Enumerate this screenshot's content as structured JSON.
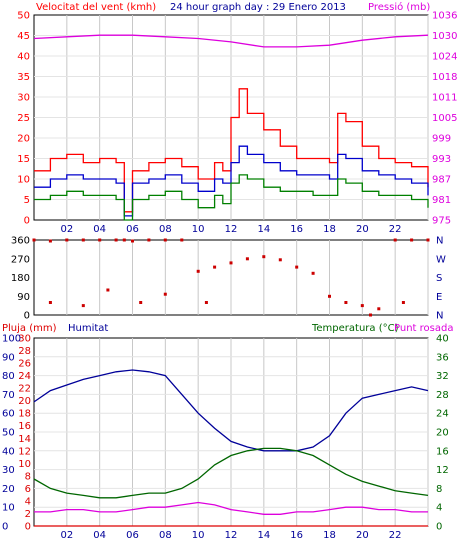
{
  "chart_data": [
    {
      "type": "line",
      "panel": "wind-pressure",
      "title": "24 hour graph day : 29 Enero 2013",
      "left_label": "Velocitat del vent (kmh)",
      "right_label": "Pressió (mb)",
      "x_ticks": [
        "02",
        "04",
        "06",
        "08",
        "10",
        "12",
        "14",
        "16",
        "18",
        "20",
        "22"
      ],
      "left_ylim": [
        0,
        50
      ],
      "left_ticks": [
        0,
        5,
        10,
        15,
        20,
        25,
        30,
        35,
        40,
        45,
        50
      ],
      "right_ylim": [
        975,
        1036
      ],
      "right_ticks": [
        975,
        981,
        987,
        993,
        999,
        1005,
        1011,
        1018,
        1024,
        1030,
        1036
      ],
      "series": [
        {
          "role": "wind-gust",
          "color": "#ff0000",
          "x": [
            0,
            1,
            2,
            3,
            4,
            5,
            5.5,
            6,
            7,
            8,
            9,
            10,
            11,
            11.5,
            12,
            12.5,
            13,
            14,
            15,
            16,
            17,
            18,
            18.5,
            19,
            20,
            21,
            22,
            23,
            24
          ],
          "values": [
            12,
            15,
            16,
            14,
            15,
            14,
            2,
            12,
            14,
            15,
            13,
            10,
            14,
            12,
            25,
            32,
            26,
            22,
            18,
            15,
            15,
            14,
            26,
            24,
            18,
            15,
            14,
            13,
            8
          ]
        },
        {
          "role": "wind-average",
          "color": "#0000cc",
          "x": [
            0,
            1,
            2,
            3,
            4,
            5,
            5.5,
            6,
            7,
            8,
            9,
            10,
            11,
            11.5,
            12,
            12.5,
            13,
            14,
            15,
            16,
            17,
            18,
            18.5,
            19,
            20,
            21,
            22,
            23,
            24
          ],
          "values": [
            8,
            10,
            11,
            10,
            10,
            9,
            1,
            9,
            10,
            11,
            9,
            7,
            10,
            9,
            14,
            18,
            16,
            14,
            12,
            11,
            11,
            10,
            16,
            15,
            12,
            11,
            10,
            9,
            6
          ]
        },
        {
          "role": "wind-minimum",
          "color": "#008000",
          "x": [
            0,
            1,
            2,
            3,
            4,
            5,
            5.5,
            6,
            7,
            8,
            9,
            10,
            11,
            11.5,
            12,
            12.5,
            13,
            14,
            15,
            16,
            17,
            18,
            18.5,
            19,
            20,
            21,
            22,
            23,
            24
          ],
          "values": [
            5,
            6,
            7,
            6,
            6,
            5,
            0,
            5,
            6,
            7,
            5,
            3,
            6,
            4,
            9,
            11,
            10,
            8,
            7,
            7,
            6,
            6,
            10,
            9,
            7,
            6,
            6,
            5,
            3
          ]
        },
        {
          "role": "pressure",
          "color": "#dd00dd",
          "axis": "right",
          "x": [
            0,
            2,
            4,
            6,
            8,
            10,
            12,
            14,
            16,
            18,
            20,
            22,
            24
          ],
          "values": [
            1029,
            1029.5,
            1030,
            1030,
            1029.5,
            1029,
            1028,
            1026.5,
            1026.5,
            1027,
            1028.5,
            1029.5,
            1030
          ]
        }
      ]
    },
    {
      "type": "scatter",
      "panel": "wind-direction",
      "x_ticks": [
        "02",
        "04",
        "06",
        "08",
        "10",
        "12",
        "14",
        "16",
        "18",
        "20",
        "22"
      ],
      "ylim": [
        0,
        360
      ],
      "left_ticks": [
        0,
        90,
        180,
        270,
        360
      ],
      "right_ticks": [
        "N",
        "E",
        "S",
        "W",
        "N"
      ],
      "color": "#cc0000",
      "points": [
        [
          0,
          360
        ],
        [
          1,
          355
        ],
        [
          2,
          360
        ],
        [
          3,
          360
        ],
        [
          4,
          360
        ],
        [
          5,
          360
        ],
        [
          5.5,
          360
        ],
        [
          6,
          355
        ],
        [
          7,
          360
        ],
        [
          8,
          360
        ],
        [
          9,
          360
        ],
        [
          10,
          210
        ],
        [
          11,
          230
        ],
        [
          12,
          250
        ],
        [
          13,
          270
        ],
        [
          14,
          280
        ],
        [
          15,
          265
        ],
        [
          16,
          230
        ],
        [
          17,
          200
        ],
        [
          18,
          90
        ],
        [
          19,
          60
        ],
        [
          20,
          45
        ],
        [
          21,
          30
        ],
        [
          22,
          360
        ],
        [
          23,
          360
        ],
        [
          24,
          360
        ],
        [
          1,
          60
        ],
        [
          3,
          45
        ],
        [
          4.5,
          120
        ],
        [
          6.5,
          60
        ],
        [
          8,
          100
        ],
        [
          10.5,
          60
        ],
        [
          20.5,
          0
        ],
        [
          22.5,
          60
        ]
      ]
    },
    {
      "type": "line",
      "panel": "humidity-temperature",
      "left_label": "Pluja (mm)",
      "humidity_label": "Humitat",
      "right_label": "Temperatura (°C)",
      "dewpoint_label": "Punt rosada",
      "x_ticks": [
        "02",
        "04",
        "06",
        "08",
        "10",
        "12",
        "14",
        "16",
        "18",
        "20",
        "22"
      ],
      "rain_ticks": [
        "0",
        "2",
        "4",
        "6",
        "8",
        "10",
        "12",
        "14",
        "16",
        "18",
        "20",
        "22",
        "24",
        "26",
        "28",
        "30"
      ],
      "humidity_ticks": [
        "0",
        "10",
        "20",
        "30",
        "40",
        "50",
        "60",
        "70",
        "80",
        "90",
        "100"
      ],
      "temp_ylim": [
        0,
        40
      ],
      "temp_ticks": [
        0,
        4,
        8,
        12,
        16,
        20,
        24,
        28,
        32,
        36,
        40
      ],
      "series": [
        {
          "role": "humidity",
          "color": "#000099",
          "ylim": [
            0,
            100
          ],
          "x": [
            0,
            1,
            2,
            3,
            4,
            5,
            6,
            7,
            8,
            9,
            10,
            11,
            12,
            13,
            14,
            15,
            16,
            17,
            18,
            19,
            20,
            21,
            22,
            23,
            24
          ],
          "values": [
            66,
            72,
            75,
            78,
            80,
            82,
            83,
            82,
            80,
            70,
            60,
            52,
            45,
            42,
            40,
            40,
            40,
            42,
            48,
            60,
            68,
            70,
            72,
            74,
            72
          ]
        },
        {
          "role": "temperature",
          "color": "#006600",
          "ylim": [
            0,
            40
          ],
          "x": [
            0,
            1,
            2,
            3,
            4,
            5,
            6,
            7,
            8,
            9,
            10,
            11,
            12,
            13,
            14,
            15,
            16,
            17,
            18,
            19,
            20,
            21,
            22,
            23,
            24
          ],
          "values": [
            10,
            8,
            7,
            6.5,
            6,
            6,
            6.5,
            7,
            7,
            8,
            10,
            13,
            15,
            16,
            16.5,
            16.5,
            16,
            15,
            13,
            11,
            9.5,
            8.5,
            7.5,
            7,
            6.5
          ]
        },
        {
          "role": "dewpoint",
          "color": "#dd00dd",
          "ylim": [
            0,
            40
          ],
          "x": [
            0,
            1,
            2,
            3,
            4,
            5,
            6,
            7,
            8,
            9,
            10,
            11,
            12,
            13,
            14,
            15,
            16,
            17,
            18,
            19,
            20,
            21,
            22,
            23,
            24
          ],
          "values": [
            3,
            3,
            3.5,
            3.5,
            3,
            3,
            3.5,
            4,
            4,
            4.5,
            5,
            4.5,
            3.5,
            3,
            2.5,
            2.5,
            3,
            3,
            3.5,
            4,
            4,
            3.5,
            3.5,
            3,
            3
          ]
        },
        {
          "role": "rain",
          "color": "#dd0000",
          "ylim": [
            0,
            30
          ],
          "x": [
            0,
            24
          ],
          "values": [
            0,
            0
          ]
        }
      ]
    }
  ]
}
